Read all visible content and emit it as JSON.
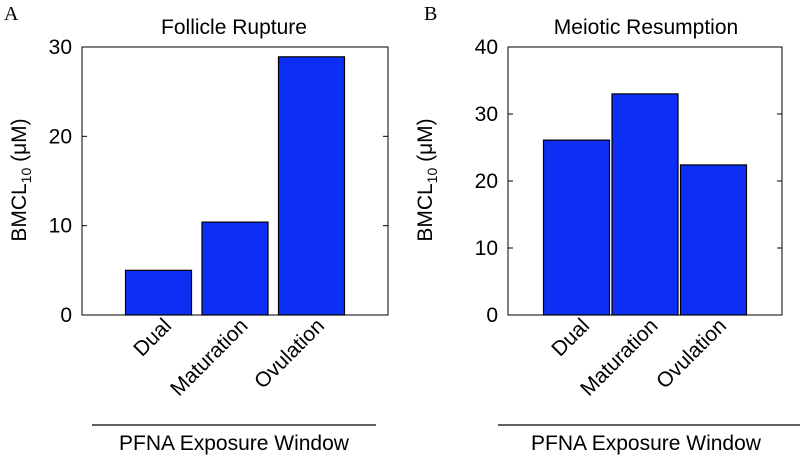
{
  "chart_data": [
    {
      "type": "bar",
      "panel": "A",
      "title": "Follicle Rupture",
      "ylabel_main": "BMCL",
      "ylabel_sub": "10",
      "ylabel_unit": " (μM)",
      "xlabel": "PFNA Exposure Window",
      "categories": [
        "Dual",
        "Maturation",
        "Ovulation"
      ],
      "values": [
        5.0,
        10.4,
        28.9
      ],
      "ylim": [
        0,
        30
      ],
      "yticks": [
        0,
        10,
        20,
        30
      ],
      "bar_color": "#0d2ff5"
    },
    {
      "type": "bar",
      "panel": "B",
      "title": "Meiotic Resumption",
      "ylabel_main": "BMCL",
      "ylabel_sub": "10",
      "ylabel_unit": " (μM)",
      "xlabel": "PFNA Exposure Window",
      "categories": [
        "Dual",
        "Maturation",
        "Ovulation"
      ],
      "values": [
        26.1,
        33.0,
        22.4
      ],
      "ylim": [
        0,
        40
      ],
      "yticks": [
        0,
        10,
        20,
        30,
        40
      ],
      "bar_color": "#0d2ff5"
    }
  ]
}
